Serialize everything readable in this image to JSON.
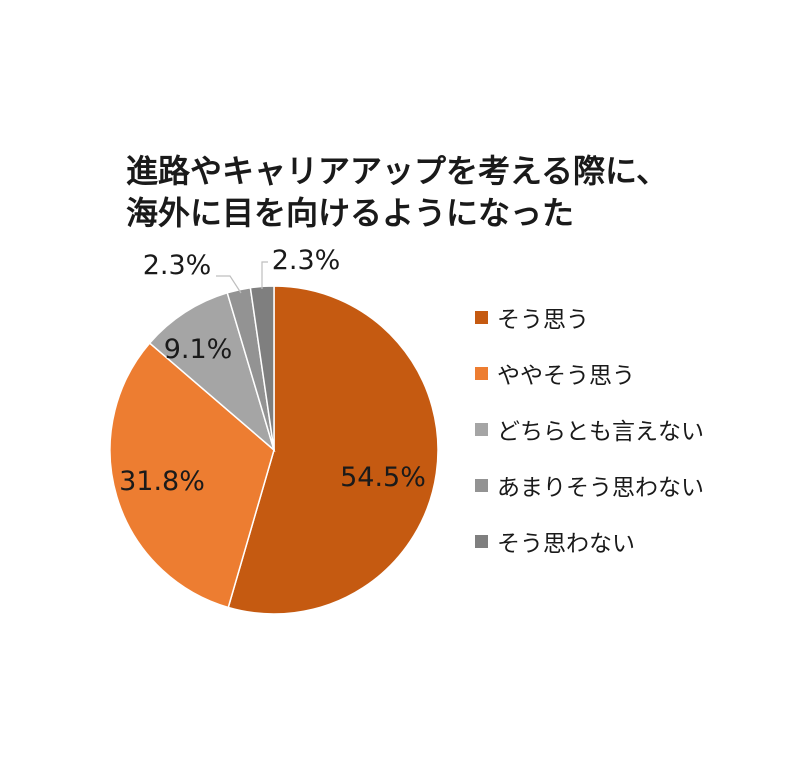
{
  "chart_data": {
    "type": "pie",
    "title_lines": [
      "進路やキャリアアップを考える際に、",
      "海外に目を向けるようになった"
    ],
    "slices": [
      {
        "label": "そう思う",
        "value": 54.5,
        "value_label": "54.5%",
        "color": "#c55a11"
      },
      {
        "label": "ややそう思う",
        "value": 31.8,
        "value_label": "31.8%",
        "color": "#ed7d31"
      },
      {
        "label": "どちらとも言えない",
        "value": 9.1,
        "value_label": "9.1%",
        "color": "#a5a5a5"
      },
      {
        "label": "あまりそう思わない",
        "value": 2.3,
        "value_label": "2.3%",
        "color": "#939393"
      },
      {
        "label": "そう思わない",
        "value": 2.3,
        "value_label": "2.3%",
        "color": "#7f7f7f"
      }
    ],
    "start_angle": "12 o'clock",
    "direction": "clockwise",
    "legend_position": "right"
  }
}
